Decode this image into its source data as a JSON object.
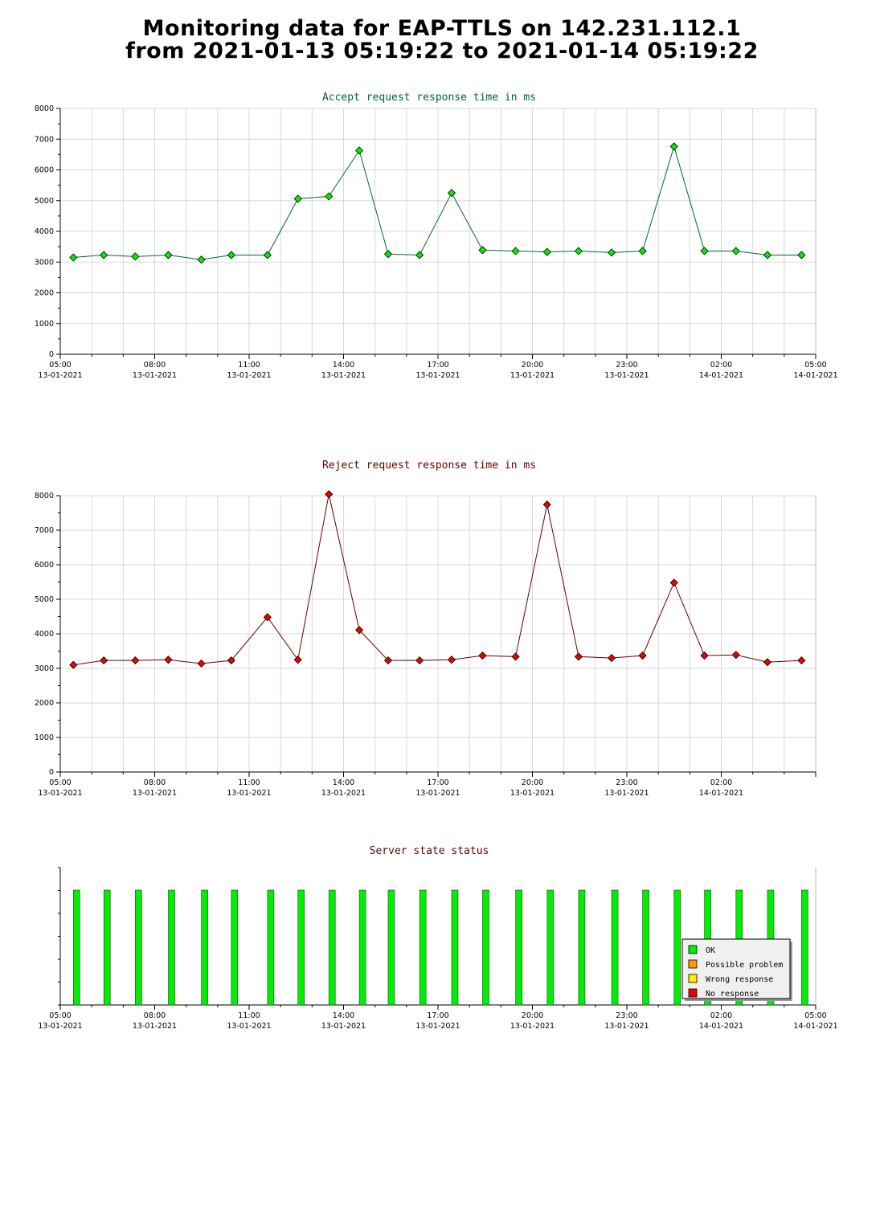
{
  "page": {
    "title_line1": "Monitoring data for EAP-TTLS on 142.231.112.1",
    "title_line2": "from 2021-01-13 05:19:22 to 2021-01-14 05:19:22"
  },
  "colors": {
    "accept_title": "#006633",
    "reject_title": "#660000",
    "status_title": "#660000",
    "accept_point": "#00ee00",
    "accept_line": "#006633",
    "reject_point": "#ee0000",
    "reject_line": "#660000",
    "ok": "#00ee00",
    "possible_problem": "#ff9900",
    "wrong_response": "#ffee00",
    "no_response": "#ee0000",
    "grid": "#d8d8d8"
  },
  "chart_data": [
    {
      "id": "accept",
      "type": "line",
      "title": "Accept request response time in ms",
      "xlabel": "",
      "ylabel": "",
      "ylim": [
        0,
        8000
      ],
      "yticks": [
        "0",
        "1000",
        "2000",
        "3000",
        "4000",
        "5000",
        "6000",
        "7000",
        "8000"
      ],
      "xlim": [
        "2021-01-13 05:00",
        "2021-01-14 05:00"
      ],
      "xticks": [
        {
          "time": "05:00",
          "date": "13-01-2021"
        },
        {
          "time": "08:00",
          "date": "13-01-2021"
        },
        {
          "time": "11:00",
          "date": "13-01-2021"
        },
        {
          "time": "14:00",
          "date": "13-01-2021"
        },
        {
          "time": "17:00",
          "date": "13-01-2021"
        },
        {
          "time": "20:00",
          "date": "13-01-2021"
        },
        {
          "time": "23:00",
          "date": "13-01-2021"
        },
        {
          "time": "02:00",
          "date": "14-01-2021"
        },
        {
          "time": "05:00",
          "date": "14-01-2021"
        }
      ],
      "grid": true,
      "x": [
        "2021-01-13 05:25",
        "2021-01-13 06:23",
        "2021-01-13 07:23",
        "2021-01-13 08:26",
        "2021-01-13 09:29",
        "2021-01-13 10:26",
        "2021-01-13 11:35",
        "2021-01-13 12:33",
        "2021-01-13 13:32",
        "2021-01-13 14:30",
        "2021-01-13 15:25",
        "2021-01-13 16:25",
        "2021-01-13 17:26",
        "2021-01-13 18:25",
        "2021-01-13 19:28",
        "2021-01-13 20:28",
        "2021-01-13 21:28",
        "2021-01-13 22:31",
        "2021-01-13 23:30",
        "2021-01-14 00:30",
        "2021-01-14 01:28",
        "2021-01-14 02:28",
        "2021-01-14 03:28",
        "2021-01-14 04:33"
      ],
      "y": [
        3150,
        3230,
        3180,
        3230,
        3080,
        3230,
        3230,
        5060,
        5140,
        6630,
        3260,
        3230,
        5250,
        3390,
        3360,
        3330,
        3360,
        3310,
        3360,
        6760,
        3360,
        3360,
        3230,
        3230
      ]
    },
    {
      "id": "reject",
      "type": "line",
      "title": "Reject request response time in ms",
      "xlabel": "",
      "ylabel": "",
      "ylim": [
        0,
        8000
      ],
      "yticks": [
        "0",
        "1000",
        "2000",
        "3000",
        "4000",
        "5000",
        "6000",
        "7000",
        "8000"
      ],
      "xlim": [
        "2021-01-13 05:00",
        "2021-01-14 05:00"
      ],
      "xticks": [
        {
          "time": "05:00",
          "date": "13-01-2021"
        },
        {
          "time": "08:00",
          "date": "13-01-2021"
        },
        {
          "time": "11:00",
          "date": "13-01-2021"
        },
        {
          "time": "14:00",
          "date": "13-01-2021"
        },
        {
          "time": "17:00",
          "date": "13-01-2021"
        },
        {
          "time": "20:00",
          "date": "13-01-2021"
        },
        {
          "time": "23:00",
          "date": "13-01-2021"
        },
        {
          "time": "02:00",
          "date": "14-01-2021"
        }
      ],
      "grid": true,
      "x": [
        "2021-01-13 05:25",
        "2021-01-13 06:23",
        "2021-01-13 07:23",
        "2021-01-13 08:26",
        "2021-01-13 09:29",
        "2021-01-13 10:26",
        "2021-01-13 11:35",
        "2021-01-13 12:33",
        "2021-01-13 13:32",
        "2021-01-13 14:30",
        "2021-01-13 15:25",
        "2021-01-13 16:25",
        "2021-01-13 17:26",
        "2021-01-13 18:25",
        "2021-01-13 19:28",
        "2021-01-13 20:28",
        "2021-01-13 21:28",
        "2021-01-13 22:31",
        "2021-01-13 23:30",
        "2021-01-14 00:30",
        "2021-01-14 01:28",
        "2021-01-14 02:28",
        "2021-01-14 03:28",
        "2021-01-14 04:33"
      ],
      "y": [
        3100,
        3230,
        3230,
        3250,
        3140,
        3230,
        4480,
        3250,
        8040,
        4110,
        3230,
        3230,
        3250,
        3370,
        3340,
        7740,
        3340,
        3300,
        3370,
        5480,
        3370,
        3390,
        3180,
        3230
      ]
    },
    {
      "id": "status",
      "type": "bar",
      "title": "Server state status",
      "xlim": [
        "2021-01-13 05:00",
        "2021-01-14 05:00"
      ],
      "xticks": [
        {
          "time": "05:00",
          "date": "13-01-2021"
        },
        {
          "time": "08:00",
          "date": "13-01-2021"
        },
        {
          "time": "11:00",
          "date": "13-01-2021"
        },
        {
          "time": "14:00",
          "date": "13-01-2021"
        },
        {
          "time": "17:00",
          "date": "13-01-2021"
        },
        {
          "time": "20:00",
          "date": "13-01-2021"
        },
        {
          "time": "23:00",
          "date": "13-01-2021"
        },
        {
          "time": "02:00",
          "date": "14-01-2021"
        },
        {
          "time": "05:00",
          "date": "14-01-2021"
        }
      ],
      "x": [
        "2021-01-13 05:25",
        "2021-01-13 06:23",
        "2021-01-13 07:23",
        "2021-01-13 08:26",
        "2021-01-13 09:29",
        "2021-01-13 10:26",
        "2021-01-13 11:35",
        "2021-01-13 12:33",
        "2021-01-13 13:32",
        "2021-01-13 14:30",
        "2021-01-13 15:25",
        "2021-01-13 16:25",
        "2021-01-13 17:26",
        "2021-01-13 18:25",
        "2021-01-13 19:28",
        "2021-01-13 20:28",
        "2021-01-13 21:28",
        "2021-01-13 22:31",
        "2021-01-13 23:30",
        "2021-01-14 00:30",
        "2021-01-14 01:28",
        "2021-01-14 02:28",
        "2021-01-14 03:28",
        "2021-01-14 04:33"
      ],
      "states": [
        "OK",
        "OK",
        "OK",
        "OK",
        "OK",
        "OK",
        "OK",
        "OK",
        "OK",
        "OK",
        "OK",
        "OK",
        "OK",
        "OK",
        "OK",
        "OK",
        "OK",
        "OK",
        "OK",
        "OK",
        "OK",
        "OK",
        "OK",
        "OK"
      ],
      "legend": [
        {
          "label": "OK",
          "color": "#00ee00"
        },
        {
          "label": "Possible problem",
          "color": "#ff9900"
        },
        {
          "label": "Wrong response",
          "color": "#ffee00"
        },
        {
          "label": "No response",
          "color": "#ee0000"
        }
      ],
      "legend_position": "bottom-right"
    }
  ]
}
